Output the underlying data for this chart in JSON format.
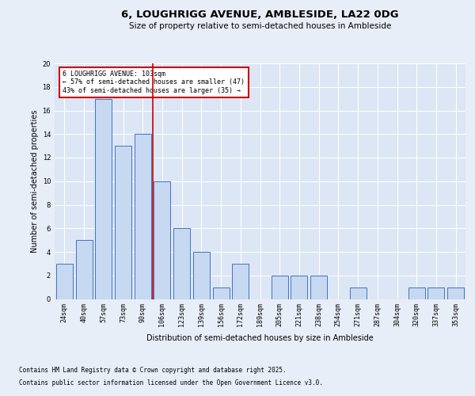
{
  "title": "6, LOUGHRIGG AVENUE, AMBLESIDE, LA22 0DG",
  "subtitle": "Size of property relative to semi-detached houses in Ambleside",
  "xlabel": "Distribution of semi-detached houses by size in Ambleside",
  "ylabel": "Number of semi-detached properties",
  "categories": [
    "24sqm",
    "40sqm",
    "57sqm",
    "73sqm",
    "90sqm",
    "106sqm",
    "123sqm",
    "139sqm",
    "156sqm",
    "172sqm",
    "189sqm",
    "205sqm",
    "221sqm",
    "238sqm",
    "254sqm",
    "271sqm",
    "287sqm",
    "304sqm",
    "320sqm",
    "337sqm",
    "353sqm"
  ],
  "values": [
    3,
    5,
    17,
    13,
    14,
    10,
    6,
    4,
    1,
    3,
    0,
    2,
    2,
    2,
    0,
    1,
    0,
    0,
    1,
    1,
    1
  ],
  "bar_color": "#c6d9f0",
  "bar_edge_color": "#4472c4",
  "background_color": "#e8eef7",
  "plot_bg_color": "#dce6f5",
  "grid_color": "#ffffff",
  "vline_x_index": 5,
  "vline_color": "#cc0000",
  "annotation_title": "6 LOUGHRIGG AVENUE: 103sqm",
  "annotation_line1": "← 57% of semi-detached houses are smaller (47)",
  "annotation_line2": "43% of semi-detached houses are larger (35) →",
  "annotation_box_color": "#cc0000",
  "footer_line1": "Contains HM Land Registry data © Crown copyright and database right 2025.",
  "footer_line2": "Contains public sector information licensed under the Open Government Licence v3.0.",
  "ylim": [
    0,
    20
  ],
  "yticks": [
    0,
    2,
    4,
    6,
    8,
    10,
    12,
    14,
    16,
    18,
    20
  ],
  "title_fontsize": 9.5,
  "subtitle_fontsize": 7.5,
  "axis_label_fontsize": 7,
  "tick_fontsize": 6,
  "footer_fontsize": 5.5,
  "annotation_fontsize": 6
}
